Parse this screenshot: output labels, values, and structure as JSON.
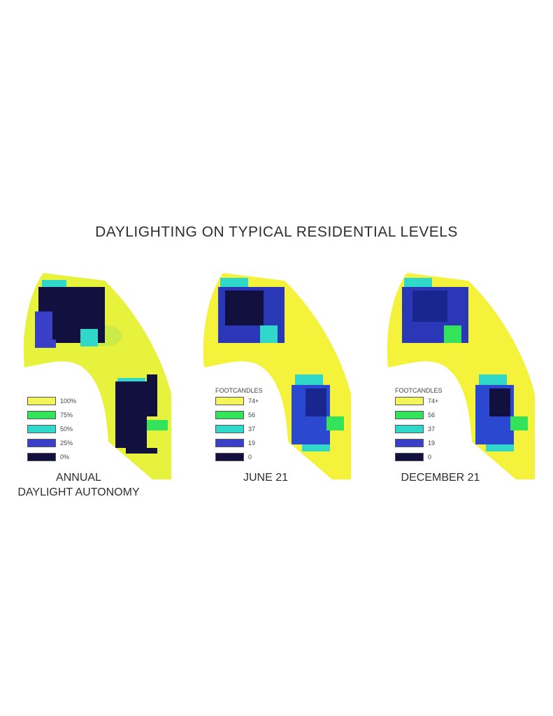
{
  "title": "DAYLIGHTING ON TYPICAL RESIDENTIAL LEVELS",
  "panels": [
    {
      "caption_lines": [
        "ANNUAL",
        "DAYLIGHT AUTONOMY"
      ],
      "legend_title": "",
      "legend": [
        {
          "label": "100%",
          "color": "#f3f55a"
        },
        {
          "label": "75%",
          "color": "#33e35a"
        },
        {
          "label": "50%",
          "color": "#2fd8c8"
        },
        {
          "label": "25%",
          "color": "#3a3fc8"
        },
        {
          "label": "0%",
          "color": "#12103e"
        }
      ]
    },
    {
      "caption_lines": [
        "JUNE 21"
      ],
      "legend_title": "FOOTCANDLES",
      "legend": [
        {
          "label": "74+",
          "color": "#f3f55a"
        },
        {
          "label": "56",
          "color": "#33e35a"
        },
        {
          "label": "37",
          "color": "#2fd8c8"
        },
        {
          "label": "19",
          "color": "#3a3fc8"
        },
        {
          "label": "0",
          "color": "#12103e"
        }
      ]
    },
    {
      "caption_lines": [
        "DECEMBER 21"
      ],
      "legend_title": "FOOTCANDLES",
      "legend": [
        {
          "label": "74+",
          "color": "#f3f55a"
        },
        {
          "label": "56",
          "color": "#33e35a"
        },
        {
          "label": "37",
          "color": "#2fd8c8"
        },
        {
          "label": "19",
          "color": "#3a3fc8"
        },
        {
          "label": "0",
          "color": "#12103e"
        }
      ]
    }
  ]
}
